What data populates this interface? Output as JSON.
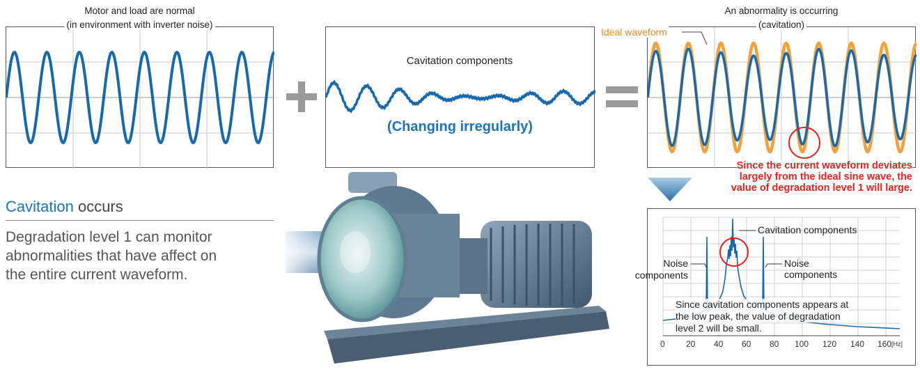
{
  "normal_panel": {
    "caption_line1": "Motor and load are normal",
    "caption_line2": "(in environment with inverter noise)"
  },
  "cavitation_panel": {
    "label": "Cavitation components",
    "irregular": "(Changing irregularly)"
  },
  "abnormal_panel": {
    "caption_line1": "An abnormality is occurring",
    "caption_line2": "(cavitation)",
    "ideal_label": "Ideal waveform",
    "deviation_text_1": "Since the current waveform deviates",
    "deviation_text_2": "largely from the ideal sine wave, the",
    "deviation_text_3": "value of degradation level 1 will large."
  },
  "left_text": {
    "title_highlight": "Cavitation",
    "title_rest": " occurs",
    "desc_1": "Degradation level 1 can monitor",
    "desc_2": "abnormalities that have affect on",
    "desc_3": "the entire current waveform."
  },
  "spectrum": {
    "cav_label": "Cavitation components",
    "noise_left_1": "Noise",
    "noise_left_2": "components",
    "noise_right_1": "Noise",
    "noise_right_2": "components",
    "note_1": "Since cavitation components appears at",
    "note_2": "the low peak, the value of degradation",
    "note_3": "level 2 will be small.",
    "x_ticks": [
      "0",
      "20",
      "40",
      "60",
      "80",
      "100",
      "120",
      "140",
      "160"
    ],
    "x_unit": "[Hz]"
  },
  "colors": {
    "wave_blue": "#1769ae",
    "ideal_orange": "#f5a13a",
    "highlight_red": "#e8211d",
    "operator_gray": "#9a9a9a"
  }
}
